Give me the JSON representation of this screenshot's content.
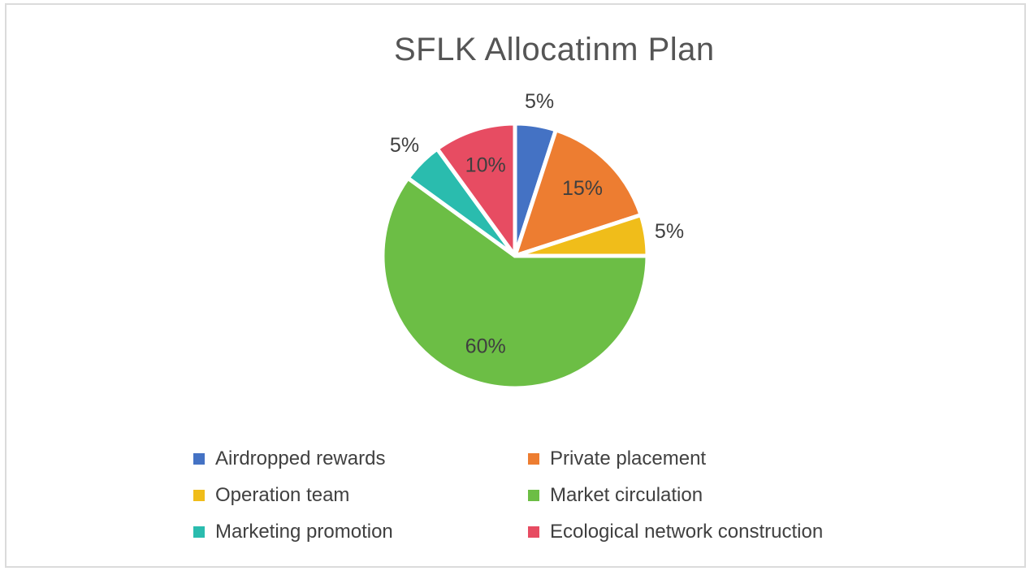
{
  "chart_data": {
    "type": "pie",
    "title": "SFLK Allocatinm Plan",
    "legend_position": "bottom",
    "start_angle_deg": 0,
    "direction": "clockwise",
    "grid": false,
    "label_color": "#3f3f3f",
    "title_color": "#555555",
    "slice_separator_color": "#ffffff",
    "categories": [
      "Airdropped rewards",
      "Private placement",
      "Operation team",
      "Market circulation",
      "Marketing promotion",
      "Ecological network construction"
    ],
    "values": [
      5,
      15,
      5,
      60,
      5,
      10
    ],
    "slices": [
      {
        "name": "Airdropped rewards",
        "value": 5,
        "label": "5%",
        "color": "#4472c4",
        "label_inside": false
      },
      {
        "name": "Private placement",
        "value": 15,
        "label": "15%",
        "color": "#ed7d31",
        "label_inside": true
      },
      {
        "name": "Operation team",
        "value": 5,
        "label": "5%",
        "color": "#f0bd1a",
        "label_inside": false
      },
      {
        "name": "Market circulation",
        "value": 60,
        "label": "60%",
        "color": "#6cbe45",
        "label_inside": true
      },
      {
        "name": "Marketing promotion",
        "value": 5,
        "label": "5%",
        "color": "#2abcae",
        "label_inside": false
      },
      {
        "name": "Ecological network construction",
        "value": 10,
        "label": "10%",
        "color": "#e74c62",
        "label_inside": true
      }
    ]
  }
}
